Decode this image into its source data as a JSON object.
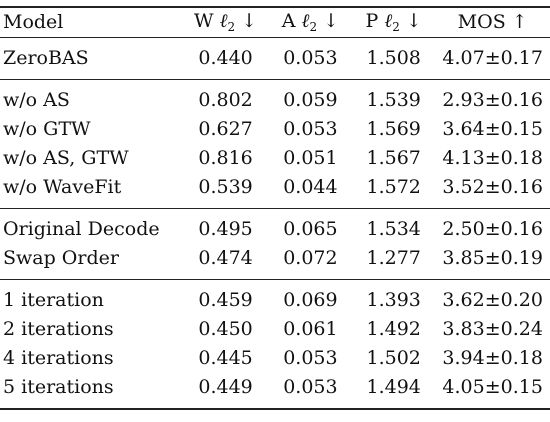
{
  "headers": {
    "model": "Model",
    "w": {
      "prefix": "W",
      "ell": "ℓ",
      "sub": "2",
      "arrow": "↓"
    },
    "a": {
      "prefix": "A",
      "ell": "ℓ",
      "sub": "2",
      "arrow": "↓"
    },
    "p": {
      "prefix": "P",
      "ell": "ℓ",
      "sub": "2",
      "arrow": "↓"
    },
    "mos": {
      "prefix": "MOS",
      "arrow": "↑"
    }
  },
  "groups": [
    {
      "rows": [
        {
          "model": "ZeroBAS",
          "w": "0.440",
          "a": "0.053",
          "p": "1.508",
          "mos": "4.07±0.17",
          "bold": {
            "w": false,
            "a": false,
            "p": false,
            "mos": false
          }
        }
      ]
    },
    {
      "rows": [
        {
          "model": "w/o AS",
          "w": "0.802",
          "a": "0.059",
          "p": "1.539",
          "mos": "2.93±0.16",
          "bold": {
            "w": false,
            "a": false,
            "p": true,
            "mos": false
          }
        },
        {
          "model": "w/o GTW",
          "w": "0.627",
          "a": "0.053",
          "p": "1.569",
          "mos": "3.64±0.15",
          "bold": {
            "w": false,
            "a": false,
            "p": false,
            "mos": false
          }
        },
        {
          "model": "w/o AS, GTW",
          "w": "0.816",
          "a": "0.051",
          "p": "1.567",
          "mos": "4.13±0.18",
          "bold": {
            "w": false,
            "a": false,
            "p": false,
            "mos": true
          }
        },
        {
          "model": "w/o WaveFit",
          "w": "0.539",
          "a": "0.044",
          "p": "1.572",
          "mos": "3.52±0.16",
          "bold": {
            "w": true,
            "a": true,
            "p": false,
            "mos": false
          }
        }
      ]
    },
    {
      "rows": [
        {
          "model": "Original Decode",
          "w": "0.495",
          "a": "0.065",
          "p": "1.534",
          "mos": "2.50±0.16",
          "bold": {
            "w": false,
            "a": true,
            "p": false,
            "mos": false
          }
        },
        {
          "model": "Swap Order",
          "w": "0.474",
          "a": "0.072",
          "p": "1.277",
          "mos": "3.85±0.19",
          "bold": {
            "w": true,
            "a": false,
            "p": true,
            "mos": true
          }
        }
      ]
    },
    {
      "rows": [
        {
          "model": "1 iteration",
          "w": "0.459",
          "a": "0.069",
          "p": "1.393",
          "mos": "3.62±0.20",
          "bold": {
            "w": false,
            "a": false,
            "p": true,
            "mos": false
          }
        },
        {
          "model": "2 iterations",
          "w": "0.450",
          "a": "0.061",
          "p": "1.492",
          "mos": "3.83±0.24",
          "bold": {
            "w": false,
            "a": false,
            "p": false,
            "mos": false
          }
        },
        {
          "model": "4 iterations",
          "w": "0.445",
          "a": "0.053",
          "p": "1.502",
          "mos": "3.94±0.18",
          "bold": {
            "w": true,
            "a": true,
            "p": false,
            "mos": false
          }
        },
        {
          "model": "5 iterations",
          "w": "0.449",
          "a": "0.053",
          "p": "1.494",
          "mos": "4.05±0.15",
          "bold": {
            "w": false,
            "a": true,
            "p": false,
            "mos": true
          }
        }
      ]
    }
  ]
}
